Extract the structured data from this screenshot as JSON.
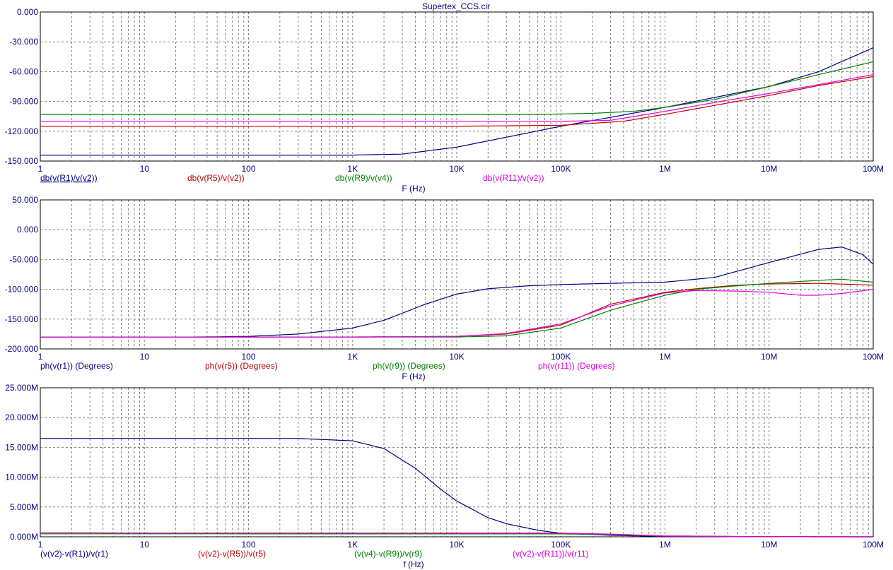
{
  "title": "Supertex_CCS.cir",
  "colors": {
    "blue": "#000080",
    "red": "#c00000",
    "green": "#008000",
    "magenta": "#e000e0",
    "grid": "#808080",
    "axis_text": "#000080"
  },
  "chart_data": [
    {
      "type": "line",
      "xscale": "log",
      "xlim": [
        1,
        100000000
      ],
      "ylim": [
        -150,
        0
      ],
      "xlabel": "F (Hz)",
      "x_ticks": [
        {
          "v": 1,
          "label": "1"
        },
        {
          "v": 10,
          "label": "10"
        },
        {
          "v": 100,
          "label": "100"
        },
        {
          "v": 1000,
          "label": "1K"
        },
        {
          "v": 10000,
          "label": "10K"
        },
        {
          "v": 100000,
          "label": "100K"
        },
        {
          "v": 1000000,
          "label": "1M"
        },
        {
          "v": 10000000,
          "label": "10M"
        },
        {
          "v": 100000000,
          "label": "100M"
        }
      ],
      "y_ticks": [
        {
          "v": 0,
          "label": "0.000"
        },
        {
          "v": -30,
          "label": "-30.000"
        },
        {
          "v": -60,
          "label": "-60.000"
        },
        {
          "v": -90,
          "label": "-90.000"
        },
        {
          "v": -120,
          "label": "-120.000"
        },
        {
          "v": -150,
          "label": "-150.000"
        }
      ],
      "series": [
        {
          "name": "db(v(R1)/v(v2))",
          "color": "#000080",
          "underline": true,
          "x": [
            1,
            100,
            1000,
            3000,
            10000,
            30000,
            100000,
            300000,
            1000000,
            3000000,
            10000000,
            30000000,
            100000000
          ],
          "values": [
            -144,
            -144,
            -144,
            -143,
            -136,
            -126,
            -115,
            -106,
            -96,
            -86,
            -75,
            -60,
            -36
          ]
        },
        {
          "name": "db(v(R5)/v(v2))",
          "color": "#c00000",
          "x": [
            1,
            1000,
            10000,
            100000,
            200000,
            400000,
            1000000,
            3000000,
            10000000,
            30000000,
            100000000
          ],
          "values": [
            -115,
            -115,
            -115,
            -114,
            -112,
            -110,
            -103,
            -94,
            -84,
            -74,
            -65
          ]
        },
        {
          "name": "db(v(R9)/v(v4))",
          "color": "#008000",
          "x": [
            1,
            1000,
            10000,
            70000,
            200000,
            500000,
            1000000,
            3000000,
            10000000,
            30000000,
            100000000
          ],
          "values": [
            -103,
            -103,
            -103,
            -103,
            -102,
            -100,
            -96,
            -88,
            -75,
            -63,
            -50
          ]
        },
        {
          "name": "db(v(R11)/v(v2))",
          "color": "#e000e0",
          "x": [
            1,
            1000,
            10000,
            100000,
            300000,
            1000000,
            3000000,
            10000000,
            30000000,
            100000000
          ],
          "values": [
            -110,
            -110,
            -110,
            -110,
            -109,
            -100,
            -91,
            -82,
            -73,
            -63
          ]
        }
      ]
    },
    {
      "type": "line",
      "xscale": "log",
      "xlim": [
        1,
        100000000
      ],
      "ylim": [
        -200,
        50
      ],
      "xlabel": "F (Hz)",
      "x_ticks": [
        {
          "v": 1,
          "label": "1"
        },
        {
          "v": 10,
          "label": "10"
        },
        {
          "v": 100,
          "label": "100"
        },
        {
          "v": 1000,
          "label": "1K"
        },
        {
          "v": 10000,
          "label": "10K"
        },
        {
          "v": 100000,
          "label": "100K"
        },
        {
          "v": 1000000,
          "label": "1M"
        },
        {
          "v": 10000000,
          "label": "10M"
        },
        {
          "v": 100000000,
          "label": "100M"
        }
      ],
      "y_ticks": [
        {
          "v": 50,
          "label": "50.000"
        },
        {
          "v": 0,
          "label": "0.000"
        },
        {
          "v": -50,
          "label": "-50.000"
        },
        {
          "v": -100,
          "label": "-100.000"
        },
        {
          "v": -150,
          "label": "-150.000"
        },
        {
          "v": -200,
          "label": "-200.000"
        }
      ],
      "series": [
        {
          "name": "ph(v(r1)) (Degrees)",
          "color": "#000080",
          "x": [
            1,
            30,
            100,
            300,
            1000,
            2000,
            5000,
            10000,
            20000,
            50000,
            100000,
            300000,
            1000000,
            3000000,
            10000000,
            30000000,
            50000000,
            80000000,
            100000000
          ],
          "values": [
            -180,
            -180,
            -179,
            -175,
            -165,
            -152,
            -125,
            -108,
            -99,
            -94,
            -92,
            -90,
            -88,
            -80,
            -55,
            -33,
            -29,
            -42,
            -58
          ]
        },
        {
          "name": "ph(v(r5)) (Degrees)",
          "color": "#c00000",
          "x": [
            1,
            1000,
            10000,
            30000,
            100000,
            300000,
            1000000,
            2000000,
            5000000,
            10000000,
            30000000,
            100000000
          ],
          "values": [
            -180,
            -180,
            -179,
            -175,
            -160,
            -125,
            -105,
            -99,
            -93,
            -91,
            -90,
            -93
          ]
        },
        {
          "name": "ph(v(r9)) (Degrees)",
          "color": "#008000",
          "x": [
            1,
            1000,
            10000,
            30000,
            100000,
            300000,
            1000000,
            2000000,
            5000000,
            10000000,
            30000000,
            50000000,
            100000000
          ],
          "values": [
            -180,
            -180,
            -180,
            -178,
            -165,
            -135,
            -110,
            -100,
            -94,
            -90,
            -85,
            -83,
            -88
          ]
        },
        {
          "name": "ph(v(r11)) (Degrees)",
          "color": "#e000e0",
          "x": [
            1,
            1000,
            10000,
            30000,
            100000,
            300000,
            1000000,
            2000000,
            5000000,
            10000000,
            20000000,
            30000000,
            50000000,
            100000000
          ],
          "values": [
            -180,
            -180,
            -179,
            -174,
            -158,
            -128,
            -106,
            -102,
            -103,
            -105,
            -110,
            -110,
            -107,
            -100
          ]
        }
      ]
    },
    {
      "type": "line",
      "xscale": "log",
      "xlim": [
        1,
        100000000
      ],
      "ylim": [
        0,
        25
      ],
      "xlabel": "f (Hz)",
      "x_ticks": [
        {
          "v": 1,
          "label": "1"
        },
        {
          "v": 10,
          "label": "10"
        },
        {
          "v": 100,
          "label": "100"
        },
        {
          "v": 1000,
          "label": "1K"
        },
        {
          "v": 10000,
          "label": "10K"
        },
        {
          "v": 100000,
          "label": "100K"
        },
        {
          "v": 1000000,
          "label": "1M"
        },
        {
          "v": 10000000,
          "label": "10M"
        },
        {
          "v": 100000000,
          "label": "100M"
        }
      ],
      "y_ticks": [
        {
          "v": 25,
          "label": "25.000M"
        },
        {
          "v": 20,
          "label": "20.000M"
        },
        {
          "v": 15,
          "label": "15.000M"
        },
        {
          "v": 10,
          "label": "10.000M"
        },
        {
          "v": 5,
          "label": "5.000M"
        },
        {
          "v": 0,
          "label": "0.000M"
        }
      ],
      "series": [
        {
          "name": "(v(v2)-v(R1))/v(r1)",
          "color": "#000080",
          "x": [
            1,
            100,
            300,
            1000,
            2000,
            4000,
            7000,
            10000,
            20000,
            30000,
            60000,
            100000,
            300000,
            1000000,
            100000000
          ],
          "values": [
            16.5,
            16.5,
            16.5,
            16.1,
            14.8,
            11.5,
            8.0,
            6.0,
            3.2,
            2.2,
            1.1,
            0.6,
            0.25,
            0.05,
            0.0
          ]
        },
        {
          "name": "(v(v2)-v(R5))/v(r5)",
          "color": "#c00000",
          "x": [
            1,
            100000,
            300000,
            1000000,
            10000000,
            100000000
          ],
          "values": [
            0.65,
            0.62,
            0.45,
            0.15,
            0.02,
            0.0
          ]
        },
        {
          "name": "(v(v4)-v(R9))/v(r9)",
          "color": "#008000",
          "x": [
            1,
            100000,
            300000,
            1000000,
            10000000,
            100000000
          ],
          "values": [
            0.5,
            0.48,
            0.35,
            0.12,
            0.01,
            0.0
          ]
        },
        {
          "name": "(v(v2)-v(R11))/v(r11)",
          "color": "#e000e0",
          "x": [
            1,
            100000,
            300000,
            1000000,
            10000000,
            100000000
          ],
          "values": [
            0.65,
            0.6,
            0.42,
            0.13,
            0.01,
            0.0
          ]
        }
      ]
    }
  ]
}
